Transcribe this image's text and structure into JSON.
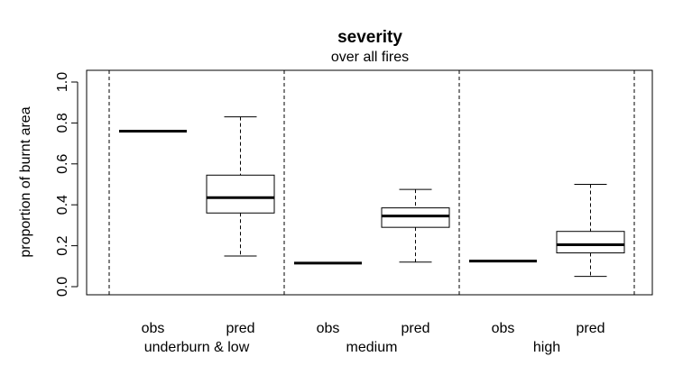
{
  "chart_data": {
    "type": "boxplot",
    "title": "severity",
    "subtitle": "over all fires",
    "ylabel": "proportion of burnt area",
    "xlabel": "",
    "ylim": [
      0,
      1
    ],
    "yticks": [
      "0.0",
      "0.2",
      "0.4",
      "0.6",
      "0.8",
      "1.0"
    ],
    "grid": false,
    "groups": [
      {
        "label": "underburn & low",
        "boxes": [
          {
            "label": "obs",
            "min": 0.76,
            "q1": 0.76,
            "median": 0.76,
            "q3": 0.76,
            "max": 0.76
          },
          {
            "label": "pred",
            "min": 0.15,
            "q1": 0.36,
            "median": 0.435,
            "q3": 0.545,
            "max": 0.83
          }
        ]
      },
      {
        "label": "medium",
        "boxes": [
          {
            "label": "obs",
            "min": 0.115,
            "q1": 0.115,
            "median": 0.115,
            "q3": 0.115,
            "max": 0.115
          },
          {
            "label": "pred",
            "min": 0.12,
            "q1": 0.29,
            "median": 0.345,
            "q3": 0.385,
            "max": 0.475
          }
        ]
      },
      {
        "label": "high",
        "boxes": [
          {
            "label": "obs",
            "min": 0.125,
            "q1": 0.125,
            "median": 0.125,
            "q3": 0.125,
            "max": 0.125
          },
          {
            "label": "pred",
            "min": 0.05,
            "q1": 0.165,
            "median": 0.205,
            "q3": 0.27,
            "max": 0.5
          }
        ]
      }
    ]
  }
}
